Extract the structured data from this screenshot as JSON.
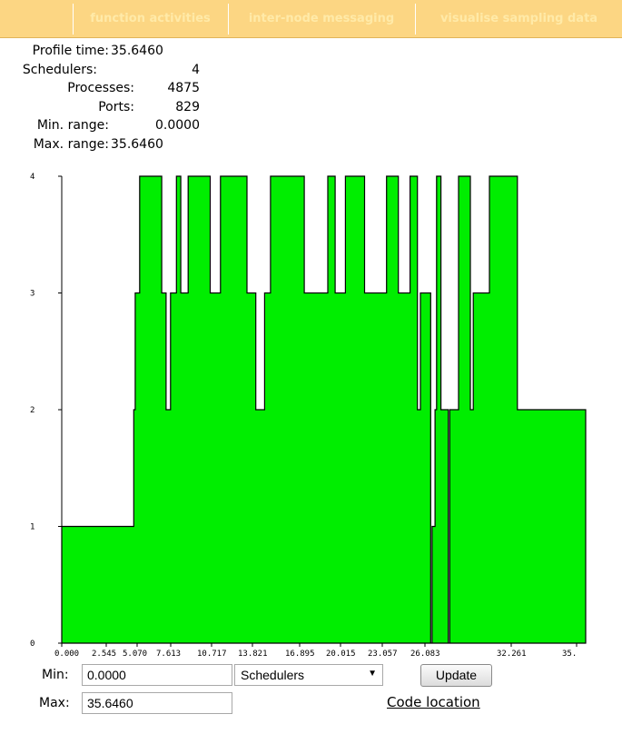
{
  "nav": {
    "tabs": [
      {
        "label": "function activities"
      },
      {
        "label": "inter-node messaging"
      },
      {
        "label": "visualise sampling data"
      }
    ]
  },
  "info": {
    "profile_time_label": "Profile time:",
    "profile_time": "35.6460",
    "schedulers_label": "Schedulers:",
    "schedulers": "4",
    "processes_label": "Processes:",
    "processes": "4875",
    "ports_label": "Ports:",
    "ports": "829",
    "min_range_label": "Min. range:",
    "min_range": "0.0000",
    "max_range_label": "Max. range:",
    "max_range": "35.6460"
  },
  "chart_data": {
    "type": "area",
    "title": "",
    "xlabel": "",
    "ylabel": "",
    "y_ticks": [
      "0",
      "1",
      "2",
      "3",
      "4"
    ],
    "x_ticks": [
      "0.000",
      "2.545",
      "5.070",
      "7.613",
      "10.717",
      "13.821",
      "16.895",
      "20.015",
      "23.057",
      "26.083",
      "32.261",
      "35."
    ],
    "xlim": [
      0,
      35.646
    ],
    "ylim": [
      0,
      4
    ],
    "fill_color": "#00ee00",
    "outline_color": "#000000",
    "series": [
      {
        "x": [
          0.0,
          4.9,
          4.9,
          5.0,
          5.0,
          5.3,
          5.3,
          6.8,
          6.8,
          7.1,
          7.1,
          7.4,
          7.4,
          7.8,
          7.8,
          8.1,
          8.1,
          8.6,
          8.6,
          10.1,
          10.1,
          10.8,
          10.8,
          12.6,
          12.6,
          13.2,
          13.2,
          13.8,
          13.8,
          14.2,
          14.2,
          16.5,
          16.5,
          18.1,
          18.1,
          18.6,
          18.6,
          19.3,
          19.3,
          20.6,
          20.6,
          22.1,
          22.1,
          22.9,
          22.9,
          23.7,
          23.7,
          24.2,
          24.2,
          24.4,
          24.4,
          25.1,
          25.1,
          25.2,
          25.2,
          25.4,
          25.4,
          25.5,
          25.5,
          25.8,
          25.8,
          26.3,
          26.3,
          26.4,
          26.4,
          27.0,
          27.0,
          27.8,
          27.8,
          28.0,
          28.0,
          29.1,
          29.1,
          31.0,
          31.0,
          35.646,
          35.646
        ],
        "y": [
          1,
          1,
          2,
          2,
          3,
          3,
          4,
          4,
          3,
          3,
          2,
          2,
          3,
          3,
          4,
          4,
          3,
          3,
          4,
          4,
          3,
          3,
          4,
          4,
          3,
          3,
          2,
          2,
          3,
          3,
          4,
          4,
          3,
          3,
          4,
          4,
          3,
          3,
          4,
          4,
          3,
          3,
          4,
          4,
          3,
          3,
          4,
          4,
          2,
          2,
          3,
          3,
          0,
          0,
          1,
          1,
          2,
          2,
          4,
          4,
          2,
          2,
          0,
          0,
          2,
          2,
          4,
          4,
          2,
          2,
          3,
          3,
          4,
          4,
          2,
          2,
          0
        ]
      }
    ]
  },
  "form": {
    "min_label": "Min:",
    "min_value": "0.0000",
    "max_label": "Max:",
    "max_value": "35.6460",
    "select_value": "Schedulers",
    "update_label": "Update",
    "code_location_label": "Code location"
  }
}
